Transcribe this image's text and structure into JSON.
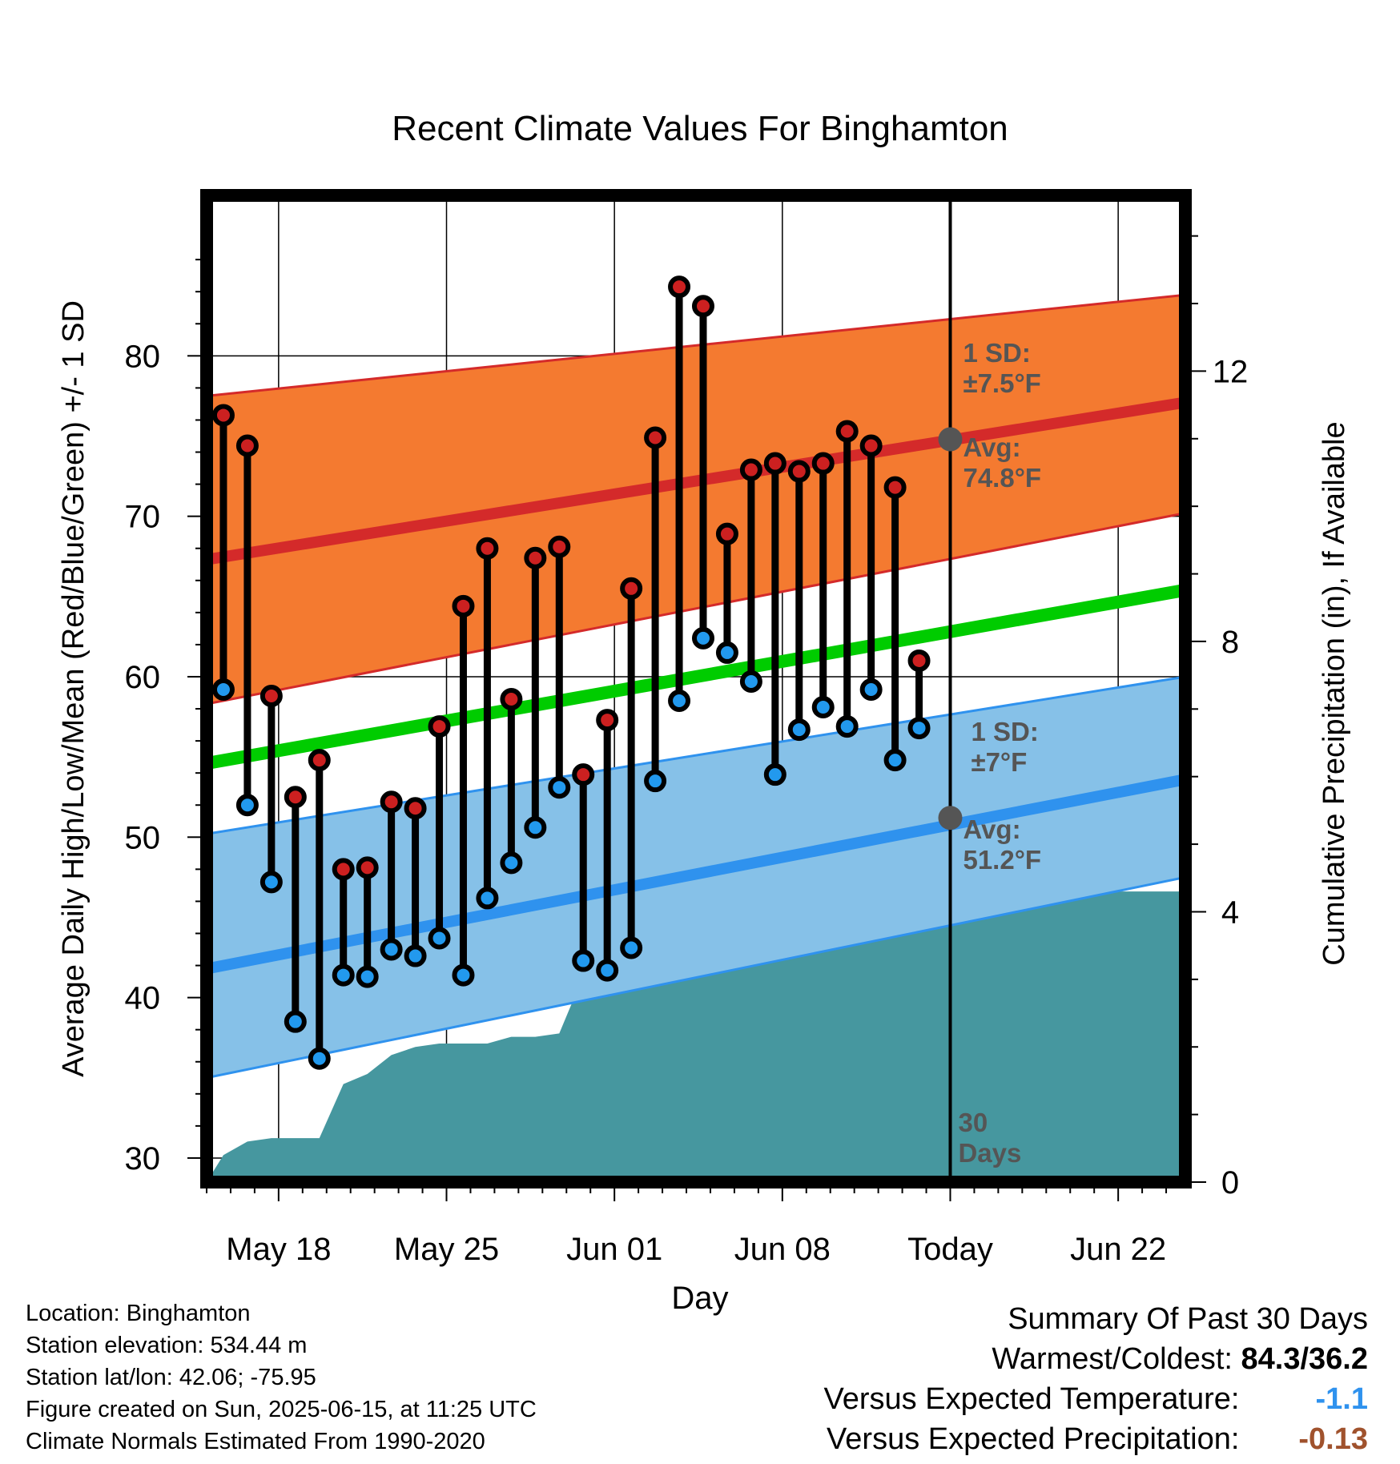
{
  "chart_data": {
    "type": "line",
    "title": "Recent Climate Values For Binghamton",
    "xlabel": "Day",
    "ylabel": "Average Daily High/Low/Mean (Red/Blue/Green) +/- 1 SD",
    "y2label": "Cumulative Precipitation (in), If Available",
    "x_tick_labels": [
      "May 18",
      "May 25",
      "Jun 01",
      "Jun 08",
      "Today",
      "Jun 22"
    ],
    "x_tick_days": [
      3,
      10,
      17,
      24,
      31,
      38
    ],
    "xlim_days": [
      0,
      40.8
    ],
    "ylim": [
      28.5,
      90
    ],
    "y_ticks": [
      30,
      40,
      50,
      60,
      70,
      80
    ],
    "y2lim": [
      0,
      14.6
    ],
    "y2_ticks": [
      0,
      4,
      8,
      12
    ],
    "grid": true,
    "daily": {
      "days": [
        0.7,
        1.7,
        2.7,
        3.7,
        4.7,
        5.7,
        6.7,
        7.7,
        8.7,
        9.7,
        10.7,
        11.7,
        12.7,
        13.7,
        14.7,
        15.7,
        16.7,
        17.7,
        18.7,
        19.7,
        20.7,
        21.7,
        22.7,
        23.7,
        24.7,
        25.7,
        26.7,
        27.7,
        28.7,
        29.7
      ],
      "high": [
        76.3,
        74.4,
        58.8,
        52.5,
        54.8,
        48.0,
        48.1,
        52.2,
        51.8,
        56.9,
        64.4,
        68.0,
        58.6,
        67.4,
        68.1,
        53.9,
        57.3,
        65.5,
        74.9,
        84.3,
        83.1,
        68.9,
        72.9,
        73.3,
        72.8,
        73.3,
        75.3,
        74.4,
        71.8,
        61.0
      ],
      "low": [
        59.2,
        52.0,
        47.2,
        38.5,
        36.2,
        41.4,
        41.3,
        43.0,
        42.6,
        43.7,
        41.4,
        46.2,
        48.4,
        50.6,
        53.1,
        42.3,
        41.7,
        43.1,
        53.5,
        58.5,
        62.4,
        61.5,
        59.7,
        53.9,
        56.7,
        58.1,
        56.9,
        59.2,
        54.8,
        56.8
      ]
    },
    "normals": {
      "days": [
        0,
        40.8
      ],
      "high_avg": [
        67.3,
        77.1
      ],
      "high_sd_upper": [
        77.5,
        83.8
      ],
      "high_sd_lower": [
        58.3,
        70.2
      ],
      "mean": [
        54.6,
        65.4
      ],
      "low_avg": [
        41.8,
        53.6
      ],
      "low_sd_upper": [
        50.2,
        60.0
      ],
      "low_sd_lower": [
        35.0,
        47.5
      ]
    },
    "precip": {
      "days": [
        0,
        0.7,
        1.7,
        2.7,
        3.7,
        4.7,
        5.7,
        6.7,
        7.7,
        8.7,
        9.7,
        10.7,
        11.7,
        12.7,
        13.7,
        14.7,
        15.7,
        16.7,
        17.7,
        18.7,
        19.7,
        20.7,
        21.7,
        22.7,
        23.7,
        24.7,
        25.7,
        26.7,
        27.7,
        28.7,
        29.7,
        30.7,
        35,
        40.8
      ],
      "cumulative": [
        0,
        0.4,
        0.6,
        0.65,
        0.65,
        0.65,
        1.45,
        1.6,
        1.88,
        2.0,
        2.05,
        2.05,
        2.05,
        2.15,
        2.15,
        2.2,
        3.05,
        3.07,
        3.07,
        3.07,
        3.07,
        3.07,
        3.25,
        3.6,
        3.65,
        3.85,
        4.2,
        4.2,
        4.2,
        4.2,
        4.3,
        4.3,
        4.3,
        4.3
      ]
    },
    "today_markers": {
      "day": 31,
      "high_avg": 74.8,
      "low_avg": 51.2,
      "period_label": "30\nDays"
    },
    "annotations": {
      "high_sd": "1 SD:\n±7.5°F",
      "high_avg": "Avg:\n74.8°F",
      "low_sd": "1 SD:\n±7°F",
      "low_avg": "Avg:\n51.2°F"
    }
  },
  "colors": {
    "high_band": "#f47a30",
    "high_line": "#d42a2a",
    "low_band": "#86c1e8",
    "low_line": "#2f92ee",
    "mean_line": "#00cc00",
    "precip": "#46979f",
    "high_dot": "#cc2020",
    "low_dot": "#2299ee",
    "negative_temp": "#2f92ee",
    "negative_precip": "#a0522d",
    "annotation": "#555555"
  },
  "station": {
    "location": "Location: Binghamton",
    "elevation": "Station elevation: 534.44 m",
    "latlon": "Station lat/lon: 42.06; -75.95",
    "created": "Figure created on Sun, 2025-06-15, at 11:25 UTC",
    "normals": "Climate Normals Estimated From 1990-2020"
  },
  "summary": {
    "title": "Summary Of Past 30 Days",
    "warmest_label": "Warmest/Coldest:",
    "warmest_value": "84.3/36.2",
    "temp_label": "Versus Expected Temperature:",
    "temp_value": "-1.1",
    "precip_label": "Versus Expected Precipitation:",
    "precip_value": "-0.13"
  }
}
